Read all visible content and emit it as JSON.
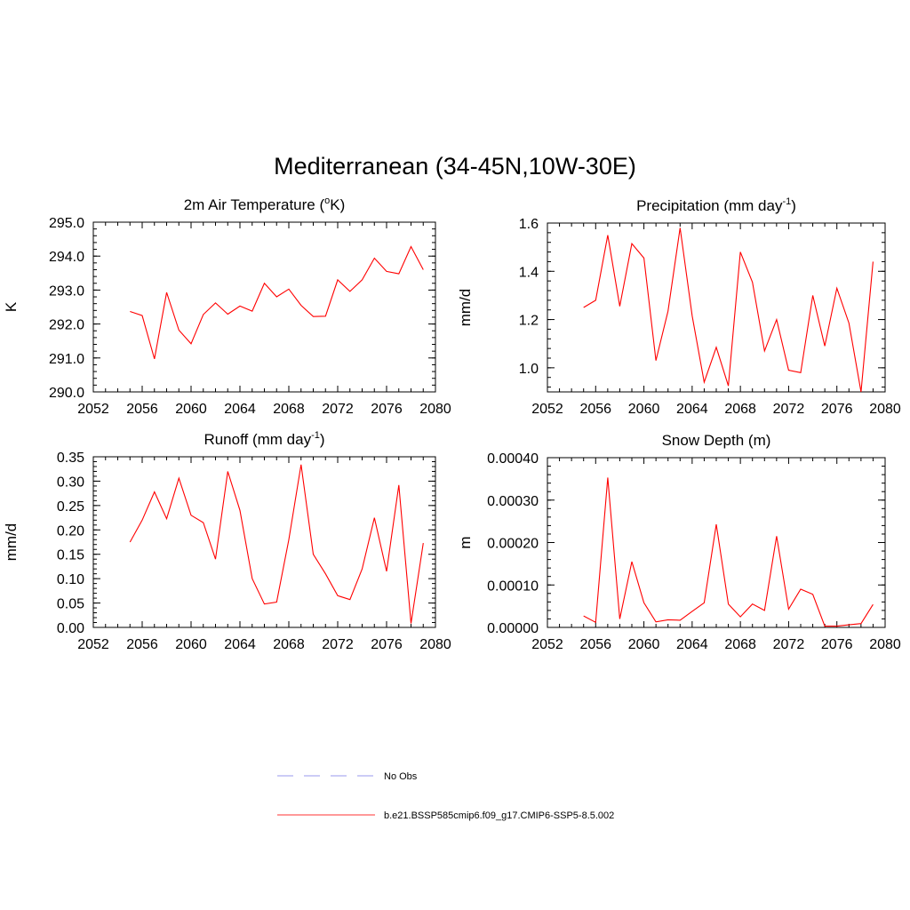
{
  "figure": {
    "title": "Mediterranean (34-45N,10W-30E)"
  },
  "legend": {
    "entries": [
      {
        "label": "No Obs",
        "color": "#9999ee",
        "style": "dashed"
      },
      {
        "label": "b.e21.BSSP585cmip6.f09_g17.CMIP6-SSP5-8.5.002",
        "color": "#ff3333",
        "style": "solid"
      }
    ]
  },
  "chart_data": [
    {
      "type": "line",
      "title": "2m Air Temperature (°K)",
      "title_parts": [
        "2m Air Temperature (",
        "o",
        "K)"
      ],
      "title_sup": "o",
      "xlabel": "",
      "ylabel": "K",
      "xlim": [
        2052,
        2080
      ],
      "ylim": [
        290.0,
        295.0
      ],
      "xticks": [
        2052,
        2056,
        2060,
        2064,
        2068,
        2072,
        2076,
        2080
      ],
      "yticks": [
        "290.0",
        "291.0",
        "292.0",
        "293.0",
        "294.0",
        "295.0"
      ],
      "ytick_values": [
        290.0,
        291.0,
        292.0,
        293.0,
        294.0,
        295.0
      ],
      "color": "#ff0000",
      "x": [
        2055,
        2056,
        2057,
        2058,
        2059,
        2060,
        2061,
        2062,
        2063,
        2064,
        2065,
        2066,
        2067,
        2068,
        2069,
        2070,
        2071,
        2072,
        2073,
        2074,
        2075,
        2076,
        2077,
        2078,
        2079
      ],
      "y": [
        292.37,
        292.25,
        290.97,
        292.93,
        291.82,
        291.42,
        292.28,
        292.62,
        292.29,
        292.53,
        292.38,
        293.2,
        292.8,
        293.03,
        292.55,
        292.22,
        292.23,
        293.3,
        292.96,
        293.3,
        293.94,
        293.55,
        293.48,
        294.28,
        293.6
      ]
    },
    {
      "type": "line",
      "title": "Precipitation (mm day-1)",
      "title_parts": [
        "Precipitation (mm day",
        "-1",
        ")"
      ],
      "xlabel": "",
      "ylabel": "mm/d",
      "xlim": [
        2052,
        2080
      ],
      "ylim": [
        0.9,
        1.6
      ],
      "xticks": [
        2052,
        2056,
        2060,
        2064,
        2068,
        2072,
        2076,
        2080
      ],
      "yticks": [
        "1.0",
        "1.2",
        "1.4",
        "1.6"
      ],
      "ytick_values": [
        1.0,
        1.2,
        1.4,
        1.6
      ],
      "color": "#ff0000",
      "x": [
        2055,
        2056,
        2057,
        2058,
        2059,
        2060,
        2061,
        2062,
        2063,
        2064,
        2065,
        2066,
        2067,
        2068,
        2069,
        2070,
        2071,
        2072,
        2073,
        2074,
        2075,
        2076,
        2077,
        2078,
        2079
      ],
      "y": [
        1.25,
        1.28,
        1.55,
        1.255,
        1.515,
        1.455,
        1.03,
        1.235,
        1.58,
        1.215,
        0.94,
        1.085,
        0.925,
        1.48,
        1.355,
        1.07,
        1.2,
        0.99,
        0.98,
        1.3,
        1.09,
        1.33,
        1.185,
        0.9,
        1.44
      ]
    },
    {
      "type": "line",
      "title": "Runoff (mm day-1)",
      "title_parts": [
        "Runoff (mm day",
        "-1",
        ")"
      ],
      "xlabel": "",
      "ylabel": "mm/d",
      "xlim": [
        2052,
        2080
      ],
      "ylim": [
        0.0,
        0.35
      ],
      "xticks": [
        2052,
        2056,
        2060,
        2064,
        2068,
        2072,
        2076,
        2080
      ],
      "yticks": [
        "0.00",
        "0.05",
        "0.10",
        "0.15",
        "0.20",
        "0.25",
        "0.30",
        "0.35"
      ],
      "ytick_values": [
        0.0,
        0.05,
        0.1,
        0.15,
        0.2,
        0.25,
        0.3,
        0.35
      ],
      "color": "#ff0000",
      "x": [
        2055,
        2056,
        2057,
        2058,
        2059,
        2060,
        2061,
        2062,
        2063,
        2064,
        2065,
        2066,
        2067,
        2068,
        2069,
        2070,
        2071,
        2072,
        2073,
        2074,
        2075,
        2076,
        2077,
        2078,
        2079
      ],
      "y": [
        0.175,
        0.22,
        0.278,
        0.223,
        0.306,
        0.23,
        0.215,
        0.14,
        0.32,
        0.24,
        0.1,
        0.048,
        0.052,
        0.18,
        0.334,
        0.15,
        0.11,
        0.065,
        0.057,
        0.12,
        0.225,
        0.115,
        0.292,
        0.008,
        0.173
      ]
    },
    {
      "type": "line",
      "title": "Snow Depth (m)",
      "title_parts": [
        "Snow Depth (m)",
        "",
        ""
      ],
      "xlabel": "",
      "ylabel": "m",
      "xlim": [
        2052,
        2080
      ],
      "ylim": [
        0.0,
        0.0004
      ],
      "xticks": [
        2052,
        2056,
        2060,
        2064,
        2068,
        2072,
        2076,
        2080
      ],
      "yticks": [
        "0.00000",
        "0.00010",
        "0.00020",
        "0.00030",
        "0.00040"
      ],
      "ytick_values": [
        0.0,
        0.0001,
        0.0002,
        0.0003,
        0.0004
      ],
      "color": "#ff0000",
      "x": [
        2055,
        2056,
        2057,
        2058,
        2059,
        2060,
        2061,
        2062,
        2063,
        2064,
        2065,
        2066,
        2067,
        2068,
        2069,
        2070,
        2071,
        2072,
        2073,
        2074,
        2075,
        2076,
        2077,
        2078,
        2079
      ],
      "y": [
        2.7e-05,
        1.2e-05,
        0.000353,
        2e-05,
        0.000155,
        5.8e-05,
        1.3e-05,
        1.8e-05,
        1.7e-05,
        3.8e-05,
        5.8e-05,
        0.000243,
        5.5e-05,
        2.5e-05,
        5.5e-05,
        4e-05,
        0.000215,
        4.3e-05,
        9e-05,
        7.8e-05,
        3e-06,
        3e-06,
        6e-06,
        9e-06,
        5.4e-05
      ]
    }
  ]
}
